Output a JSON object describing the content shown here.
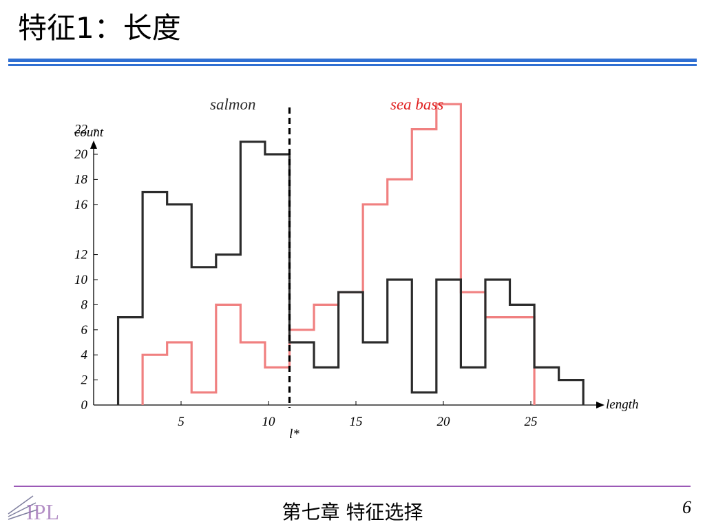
{
  "slide": {
    "title": "特征1：长度",
    "footer": "第七章  特征选择",
    "page_number": "6",
    "logo_text": "IPL"
  },
  "chart_data": {
    "type": "histogram",
    "xlabel": "length",
    "ylabel": "count",
    "x_ticks": [
      5,
      10,
      15,
      20,
      25
    ],
    "y_ticks": [
      0,
      2,
      4,
      6,
      8,
      10,
      12,
      16,
      18,
      20,
      22
    ],
    "threshold": {
      "x": 11.2,
      "label": "l*"
    },
    "bin_edges": [
      1.4,
      2.8,
      4.2,
      5.6,
      7.0,
      8.4,
      9.8,
      11.2,
      12.6,
      14.0,
      15.4,
      16.8,
      18.2,
      19.6,
      21.0,
      22.4,
      23.8,
      25.2,
      26.6,
      28.0
    ],
    "series": [
      {
        "name": "salmon",
        "color": "#2b2b2b",
        "values": [
          7,
          17,
          16,
          11,
          12,
          21,
          20,
          5,
          3,
          9,
          5,
          10,
          1,
          10,
          3,
          10,
          8,
          3,
          2
        ]
      },
      {
        "name": "sea bass",
        "color": "#f08080",
        "values": [
          0,
          4,
          5,
          1,
          8,
          5,
          3,
          6,
          8,
          9,
          16,
          18,
          22,
          24,
          9,
          7,
          7,
          0,
          0
        ]
      }
    ]
  }
}
